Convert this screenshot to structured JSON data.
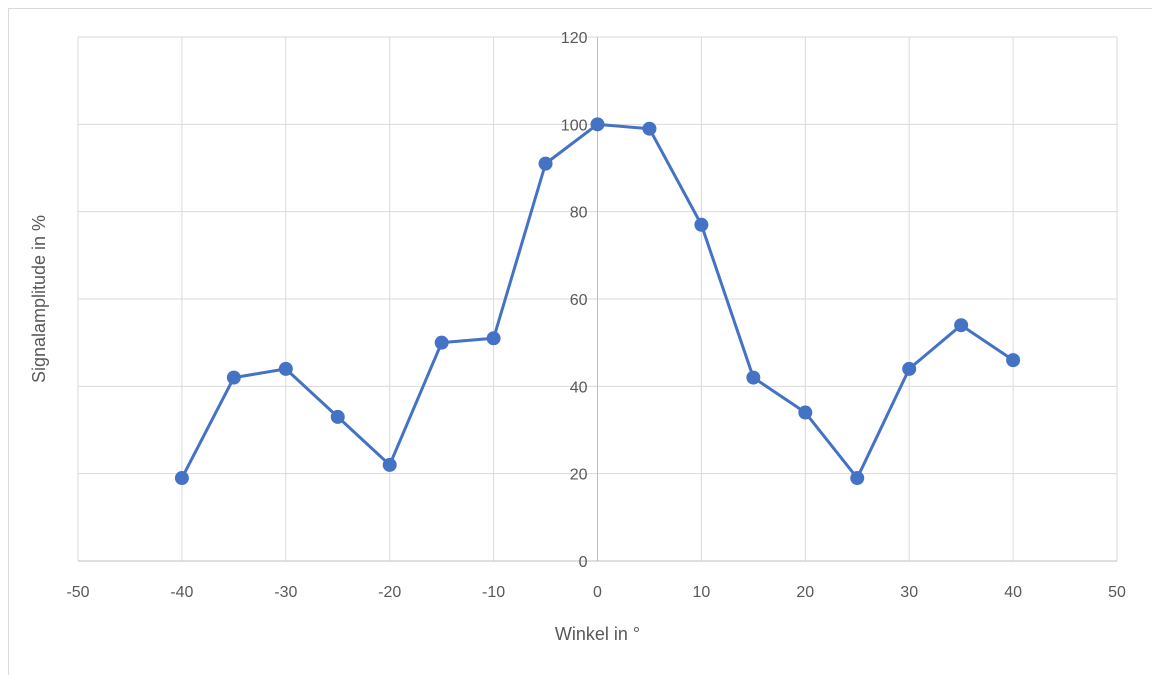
{
  "chart_data": {
    "type": "scatter",
    "title": "",
    "xlabel": "Winkel in °",
    "ylabel": "Signalamplitude in %",
    "xlim": [
      -50,
      50
    ],
    "ylim": [
      0,
      120
    ],
    "x_ticks": [
      -50,
      -40,
      -30,
      -20,
      -10,
      0,
      10,
      20,
      30,
      40,
      50
    ],
    "y_ticks": [
      0,
      20,
      40,
      60,
      80,
      100,
      120
    ],
    "grid": true,
    "legend": "none",
    "marker": "circle",
    "line": "straight",
    "series": [
      {
        "color": "#4472c4",
        "x": [
          -40,
          -35,
          -30,
          -25,
          -20,
          -15,
          -10,
          -5,
          0,
          5,
          10,
          15,
          20,
          25,
          30,
          35,
          40
        ],
        "y": [
          19,
          42,
          44,
          33,
          22,
          50,
          51,
          91,
          100,
          99,
          77,
          42,
          34,
          19,
          44,
          54,
          46
        ]
      }
    ]
  }
}
